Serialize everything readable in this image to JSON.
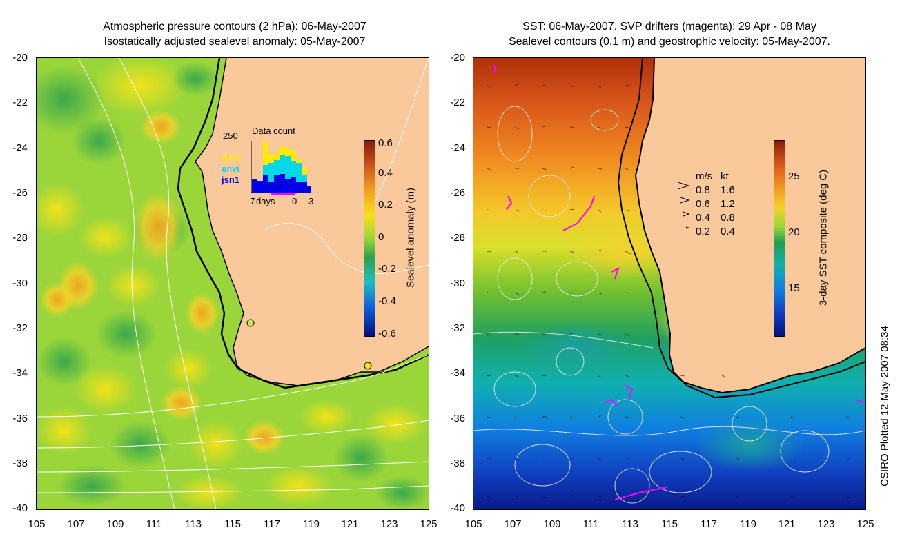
{
  "left_panel": {
    "title_line1": "Atmospheric pressure contours (2 hPa): 06-May-2007",
    "title_line2": "Isostatically adjusted sealevel anomaly: 05-May-2007",
    "colorbar_label": "Sealevel anomaly (m)",
    "colorbar_ticks": [
      "0.6",
      "0.4",
      "0.2",
      "0",
      "-0.2",
      "-0.4",
      "-0.6"
    ],
    "inset": {
      "title": "Data count",
      "max_label": "250",
      "legend": [
        "GFO",
        "envi",
        "jsn1"
      ],
      "x_labels": [
        "-7",
        "days",
        "0",
        "3"
      ]
    }
  },
  "right_panel": {
    "title_line1": "SST: 06-May-2007. SVP drifters (magenta): 29 Apr - 08 May",
    "title_line2": "Sealevel contours (0.1 m) and geostrophic velocity: 05-May-2007.",
    "colorbar_label": "3-day SST composite (deg C)",
    "colorbar_ticks": [
      "25",
      "20",
      "15"
    ],
    "velocity_key": {
      "headers": [
        "m/s",
        "kt"
      ],
      "rows": [
        {
          "ms": "0.8",
          "kt": "1.6"
        },
        {
          "ms": "0.6",
          "kt": "1.2"
        },
        {
          "ms": "0.4",
          "kt": "0.8"
        },
        {
          "ms": "0.2",
          "kt": "0.4"
        }
      ]
    }
  },
  "axes": {
    "lat_labels": [
      "-20",
      "-22",
      "-24",
      "-26",
      "-28",
      "-30",
      "-32",
      "-34",
      "-36",
      "-38",
      "-40"
    ],
    "lon_labels": [
      "105",
      "107",
      "109",
      "111",
      "113",
      "115",
      "117",
      "119",
      "121",
      "123",
      "125"
    ]
  },
  "credit": "CSIRO Plotted 12-May-2007 08:34",
  "colors": {
    "land": "#f9c89b",
    "ocean_base_left": "#9ad63a",
    "ocean_base_right": "#2a9d6a"
  }
}
